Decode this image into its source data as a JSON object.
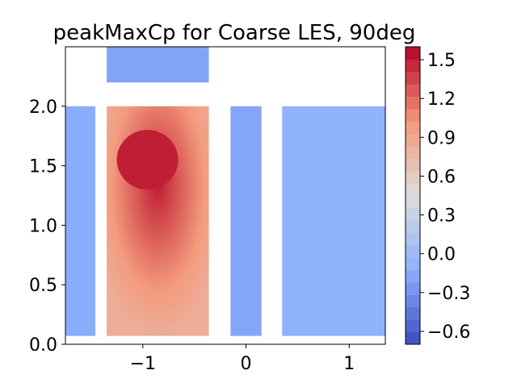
{
  "chart_data": {
    "type": "heatmap",
    "title": "peakMaxCp for Coarse LES, 90deg",
    "xlabel": "",
    "ylabel": "",
    "xlim": [
      -1.75,
      1.35
    ],
    "ylim": [
      0.0,
      2.5
    ],
    "x_ticks": [
      {
        "value": -1,
        "label": "−1"
      },
      {
        "value": 0,
        "label": "0"
      },
      {
        "value": 1,
        "label": "1"
      }
    ],
    "y_ticks": [
      {
        "value": 0.0,
        "label": "0.0"
      },
      {
        "value": 0.5,
        "label": "0.5"
      },
      {
        "value": 1.0,
        "label": "1.0"
      },
      {
        "value": 1.5,
        "label": "1.5"
      },
      {
        "value": 2.0,
        "label": "2.0"
      }
    ],
    "colorbar": {
      "colormap": "coolwarm",
      "min": -0.7,
      "max": 1.6,
      "ticks": [
        {
          "value": 1.5,
          "label": "1.5"
        },
        {
          "value": 1.2,
          "label": "1.2"
        },
        {
          "value": 0.9,
          "label": "0.9"
        },
        {
          "value": 0.6,
          "label": "0.6"
        },
        {
          "value": 0.3,
          "label": "0.3"
        },
        {
          "value": 0.0,
          "label": "0.0"
        },
        {
          "value": -0.3,
          "label": "−0.3"
        },
        {
          "value": -0.6,
          "label": "−0.6"
        }
      ]
    },
    "panels": [
      {
        "x": [
          -1.75,
          -1.46
        ],
        "y": [
          0.07,
          2.0
        ],
        "base_value": -0.15
      },
      {
        "x": [
          -1.35,
          -0.36
        ],
        "y": [
          0.07,
          2.0
        ],
        "base_value": 0.9,
        "peak_value": 1.5
      },
      {
        "x": [
          -1.35,
          -0.36
        ],
        "y": [
          2.2,
          2.5
        ],
        "base_value": -0.2
      },
      {
        "x": [
          -0.15,
          0.15
        ],
        "y": [
          0.07,
          2.0
        ],
        "base_value": -0.18
      },
      {
        "x": [
          0.35,
          1.35
        ],
        "y": [
          0.07,
          2.0
        ],
        "base_value": -0.1
      }
    ]
  },
  "colors": {
    "cold": "#3b4cc0",
    "neutral": "#dddddd",
    "hot": "#b40426"
  }
}
